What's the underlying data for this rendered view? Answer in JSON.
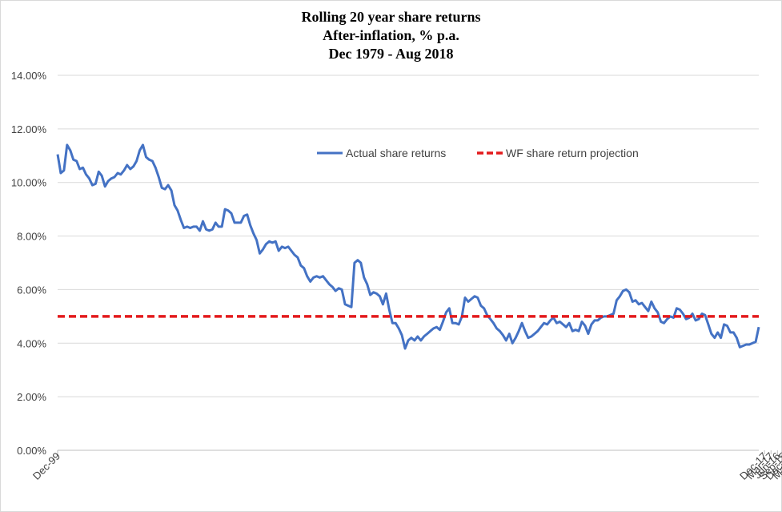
{
  "chart_data": {
    "type": "line",
    "title": [
      "Rolling 20 year share returns",
      "After-inflation, % p.a.",
      "Dec 1979 - Aug 2018"
    ],
    "xlabel": "",
    "ylabel": "",
    "ylim": [
      0,
      14
    ],
    "yticks": [
      "0.00%",
      "2.00%",
      "4.00%",
      "6.00%",
      "8.00%",
      "10.00%",
      "12.00%",
      "14.00%"
    ],
    "xticks": [
      "Dec-99",
      "Sep-00",
      "Jun-01",
      "Mar-02",
      "Dec-02",
      "Sep-03",
      "Jun-04",
      "Mar-05",
      "Dec-05",
      "Sep-06",
      "Jun-07",
      "Mar-08",
      "Dec-08",
      "Sep-09",
      "Jun-10",
      "Mar-11",
      "Dec-11",
      "Sep-12",
      "Jun-13",
      "Mar-14",
      "Dec-14",
      "Sep-15",
      "Jun-16",
      "Mar-17",
      "Dec-17"
    ],
    "x_start": "Dec-99",
    "x_end": "Aug-18",
    "grid": "horizontal",
    "legend_position": "top-right",
    "series": [
      {
        "name": "Actual share returns",
        "color": "#4472c4",
        "style": "solid",
        "values": [
          11.05,
          10.35,
          10.45,
          11.4,
          11.2,
          10.85,
          10.8,
          10.5,
          10.55,
          10.3,
          10.15,
          9.9,
          9.95,
          10.4,
          10.25,
          9.85,
          10.05,
          10.15,
          10.2,
          10.35,
          10.3,
          10.45,
          10.65,
          10.5,
          10.6,
          10.8,
          11.2,
          11.4,
          10.95,
          10.85,
          10.8,
          10.55,
          10.2,
          9.8,
          9.75,
          9.9,
          9.7,
          9.15,
          8.95,
          8.6,
          8.3,
          8.35,
          8.3,
          8.35,
          8.35,
          8.2,
          8.55,
          8.25,
          8.2,
          8.25,
          8.5,
          8.35,
          8.35,
          9.0,
          8.95,
          8.85,
          8.5,
          8.5,
          8.5,
          8.75,
          8.8,
          8.4,
          8.1,
          7.85,
          7.35,
          7.5,
          7.7,
          7.8,
          7.75,
          7.8,
          7.45,
          7.6,
          7.55,
          7.6,
          7.45,
          7.3,
          7.2,
          6.9,
          6.8,
          6.5,
          6.3,
          6.45,
          6.5,
          6.45,
          6.5,
          6.35,
          6.2,
          6.1,
          5.95,
          6.05,
          6.0,
          5.45,
          5.4,
          5.35,
          7.0,
          7.1,
          7.0,
          6.45,
          6.2,
          5.8,
          5.9,
          5.85,
          5.75,
          5.45,
          5.85,
          5.25,
          4.75,
          4.75,
          4.55,
          4.3,
          3.8,
          4.1,
          4.2,
          4.1,
          4.25,
          4.1,
          4.25,
          4.35,
          4.45,
          4.55,
          4.6,
          4.5,
          4.8,
          5.15,
          5.3,
          4.75,
          4.75,
          4.7,
          5.0,
          5.7,
          5.55,
          5.65,
          5.75,
          5.7,
          5.4,
          5.3,
          5.05,
          4.9,
          4.75,
          4.55,
          4.45,
          4.3,
          4.1,
          4.35,
          4.0,
          4.2,
          4.45,
          4.75,
          4.45,
          4.2,
          4.25,
          4.35,
          4.45,
          4.6,
          4.75,
          4.7,
          4.85,
          4.95,
          4.75,
          4.8,
          4.7,
          4.6,
          4.75,
          4.45,
          4.5,
          4.45,
          4.8,
          4.65,
          4.35,
          4.7,
          4.85,
          4.85,
          4.95,
          5.0,
          5.0,
          5.05,
          5.1,
          5.6,
          5.75,
          5.95,
          6.0,
          5.9,
          5.55,
          5.6,
          5.45,
          5.5,
          5.35,
          5.2,
          5.55,
          5.3,
          5.15,
          4.8,
          4.75,
          4.9,
          5.0,
          4.95,
          5.3,
          5.25,
          5.1,
          4.9,
          4.95,
          5.1,
          4.85,
          4.9,
          5.1,
          5.05,
          4.7,
          4.35,
          4.2,
          4.4,
          4.2,
          4.7,
          4.65,
          4.4,
          4.4,
          4.2,
          3.85,
          3.9,
          3.95,
          3.95,
          4.0,
          4.05,
          4.6
        ]
      },
      {
        "name": "WF share return projection",
        "color": "#e31a1c",
        "style": "dashed",
        "values": [
          5.0,
          5.0
        ]
      }
    ]
  }
}
